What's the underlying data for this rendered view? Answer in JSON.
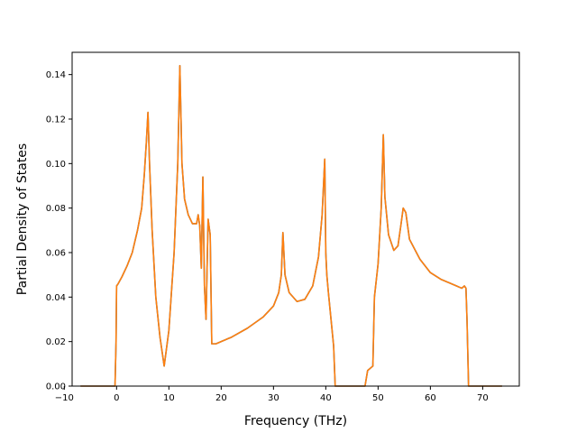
{
  "chart_data": {
    "type": "line",
    "title": "",
    "xlabel": "Frequency (THz)",
    "ylabel": "Partial Density of States",
    "xlim": [
      -8.5,
      77
    ],
    "ylim": [
      0,
      0.15
    ],
    "grid": false,
    "x_ticks": [
      -10,
      0,
      10,
      20,
      30,
      40,
      50,
      60,
      70
    ],
    "x_tick_labels": [
      "−10",
      "0",
      "10",
      "20",
      "30",
      "40",
      "50",
      "60",
      "70"
    ],
    "y_ticks": [
      0.0,
      0.02,
      0.04,
      0.06,
      0.08,
      0.1,
      0.12,
      0.14
    ],
    "y_tick_labels": [
      "0.00",
      "0.02",
      "0.04",
      "0.06",
      "0.08",
      "0.10",
      "0.12",
      "0.14"
    ],
    "series": [
      {
        "color": "#ff7f0e",
        "overlay_color": "#1f77b4",
        "x": [
          -6.9,
          -0.3,
          -0.1,
          0.0,
          0.3,
          1.0,
          2.0,
          3.0,
          4.0,
          4.8,
          5.3,
          5.7,
          6.0,
          6.3,
          6.8,
          7.5,
          8.3,
          9.1,
          10.0,
          11.0,
          11.7,
          12.1,
          12.5,
          13.0,
          13.7,
          14.5,
          15.3,
          15.6,
          15.9,
          16.2,
          16.5,
          16.8,
          17.1,
          17.5,
          17.9,
          18.2,
          19.0,
          22.0,
          25.0,
          28.0,
          30.0,
          31.0,
          31.5,
          31.8,
          32.2,
          33.0,
          34.5,
          36.0,
          37.5,
          38.6,
          39.3,
          39.8,
          40.0,
          40.2,
          40.5,
          41.0,
          41.5,
          41.8,
          44.0,
          47.5,
          48.0,
          49.0,
          49.3,
          50.0,
          50.6,
          51.0,
          51.3,
          52.0,
          53.0,
          53.8,
          54.4,
          54.8,
          55.3,
          56.0,
          58.0,
          60.0,
          62.0,
          64.0,
          65.0,
          66.0,
          66.5,
          66.8,
          67.0,
          67.3,
          69.0,
          73.7
        ],
        "y": [
          0.0,
          0.0,
          0.02,
          0.045,
          0.046,
          0.049,
          0.054,
          0.06,
          0.07,
          0.08,
          0.095,
          0.11,
          0.123,
          0.1,
          0.07,
          0.04,
          0.022,
          0.009,
          0.025,
          0.06,
          0.1,
          0.144,
          0.1,
          0.084,
          0.077,
          0.073,
          0.073,
          0.077,
          0.072,
          0.053,
          0.094,
          0.045,
          0.03,
          0.075,
          0.068,
          0.019,
          0.019,
          0.022,
          0.026,
          0.031,
          0.036,
          0.042,
          0.05,
          0.069,
          0.05,
          0.042,
          0.038,
          0.039,
          0.045,
          0.058,
          0.077,
          0.102,
          0.06,
          0.05,
          0.042,
          0.03,
          0.018,
          0.0,
          0.0,
          0.0,
          0.007,
          0.009,
          0.04,
          0.055,
          0.08,
          0.113,
          0.085,
          0.068,
          0.061,
          0.063,
          0.073,
          0.08,
          0.078,
          0.066,
          0.057,
          0.051,
          0.048,
          0.046,
          0.045,
          0.044,
          0.045,
          0.044,
          0.03,
          0.0,
          0.0,
          0.0
        ]
      }
    ]
  }
}
